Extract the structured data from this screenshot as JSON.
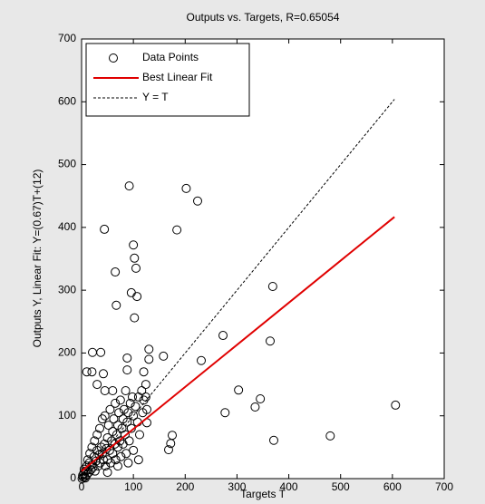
{
  "chart_data": {
    "type": "scatter",
    "title": "Outputs vs. Targets, R=0.65054",
    "x_label": "Targets T",
    "y_label": "Outputs Y,  Linear Fit: Y=(0.67)T+(12)",
    "xlim": [
      0,
      700
    ],
    "ylim": [
      0,
      700
    ],
    "xticks": [
      0,
      100,
      200,
      300,
      400,
      500,
      600,
      700
    ],
    "yticks": [
      0,
      100,
      200,
      300,
      400,
      500,
      600,
      700
    ],
    "legend": "upper-left",
    "series": [
      {
        "name": "Data Points",
        "color": "#000000",
        "style": "circle",
        "x": [
          92,
          202,
          224,
          44,
          184,
          100,
          102,
          105,
          65,
          96,
          107,
          67,
          102,
          273,
          369,
          364,
          158,
          130,
          303,
          231,
          277,
          335,
          345,
          124,
          126,
          175,
          172,
          168,
          606,
          480,
          371,
          21,
          37,
          42,
          88,
          88,
          2,
          4,
          5,
          6,
          8,
          10,
          10,
          12,
          14,
          15,
          16,
          18,
          20,
          20,
          22,
          24,
          25,
          26,
          28,
          30,
          30,
          32,
          34,
          35,
          36,
          38,
          40,
          40,
          42,
          44,
          45,
          46,
          48,
          50,
          50,
          52,
          54,
          55,
          56,
          58,
          60,
          60,
          62,
          64,
          65,
          66,
          68,
          70,
          70,
          72,
          74,
          75,
          76,
          78,
          80,
          80,
          82,
          84,
          85,
          86,
          88,
          90,
          92,
          94,
          96,
          98,
          100,
          100,
          104,
          108,
          110,
          112,
          116,
          118,
          120,
          124,
          126,
          30,
          20,
          10,
          45,
          60,
          120,
          130,
          70,
          90,
          110,
          50,
          3,
          7,
          1
        ],
        "values": [
          466,
          462,
          442,
          397,
          396,
          372,
          351,
          335,
          329,
          296,
          290,
          276,
          256,
          228,
          306,
          219,
          195,
          206,
          141,
          188,
          105,
          114,
          127,
          130,
          89,
          69,
          56,
          46,
          117,
          68,
          61,
          201,
          201,
          167,
          173,
          192,
          5,
          8,
          15,
          3,
          12,
          20,
          6,
          30,
          10,
          25,
          40,
          14,
          22,
          50,
          18,
          35,
          60,
          12,
          28,
          45,
          70,
          20,
          38,
          80,
          25,
          50,
          40,
          95,
          30,
          55,
          100,
          20,
          48,
          65,
          30,
          85,
          45,
          110,
          25,
          60,
          75,
          40,
          95,
          55,
          120,
          30,
          70,
          85,
          50,
          105,
          60,
          125,
          35,
          80,
          95,
          55,
          110,
          70,
          140,
          40,
          90,
          105,
          60,
          120,
          80,
          130,
          100,
          45,
          115,
          90,
          130,
          70,
          140,
          105,
          125,
          150,
          110,
          150,
          170,
          170,
          140,
          140,
          170,
          190,
          20,
          25,
          30,
          10,
          2,
          1,
          0
        ]
      },
      {
        "name": "Best Linear Fit",
        "color": "#e00000",
        "style": "solid",
        "x": [
          0,
          604
        ],
        "values": [
          12,
          416.7
        ]
      },
      {
        "name": "Y = T",
        "color": "#000000",
        "style": "dashed",
        "x": [
          0,
          604
        ],
        "values": [
          0,
          604
        ]
      }
    ]
  }
}
